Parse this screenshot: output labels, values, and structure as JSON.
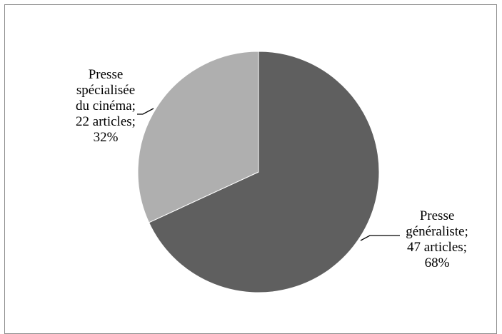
{
  "chart_data": {
    "type": "pie",
    "title": "",
    "legend": "none",
    "slices": [
      {
        "category": "Presse généraliste",
        "count_text": "47 articles",
        "percent_text": "68%",
        "value": 47,
        "color": "#5f5f5f",
        "label_lines": [
          "Presse",
          "généraliste;",
          "47 articles;",
          "68%"
        ]
      },
      {
        "category": "Presse spécialisée du cinéma",
        "count_text": "22 articles",
        "percent_text": "32%",
        "value": 22,
        "color": "#afafaf",
        "label_lines": [
          "Presse",
          "spécialisée",
          "du cinéma;",
          "22 articles;",
          "32%"
        ]
      }
    ],
    "start_angle": "12 o'clock",
    "direction": "clockwise"
  }
}
